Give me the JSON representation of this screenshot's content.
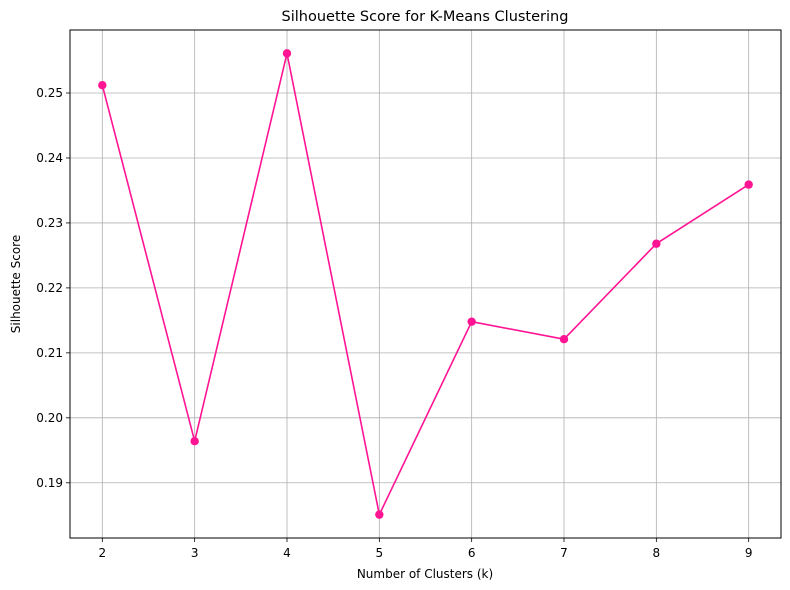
{
  "chart_data": {
    "type": "line",
    "title": "Silhouette Score for K-Means Clustering",
    "xlabel": "Number of Clusters (k)",
    "ylabel": "Silhouette Score",
    "x": [
      2,
      3,
      4,
      5,
      6,
      7,
      8,
      9
    ],
    "series": [
      {
        "values": [
          0.2512,
          0.1964,
          0.2561,
          0.1851,
          0.2148,
          0.2121,
          0.2268,
          0.2359
        ],
        "color": "#ff1493",
        "marker": "circle"
      }
    ],
    "xlim": [
      1.65,
      9.35
    ],
    "ylim": [
      0.1815,
      0.2597
    ],
    "xticks": [
      "2",
      "3",
      "4",
      "5",
      "6",
      "7",
      "8",
      "9"
    ],
    "yticks": [
      "0.19",
      "0.20",
      "0.21",
      "0.22",
      "0.23",
      "0.24",
      "0.25"
    ],
    "grid": true
  }
}
